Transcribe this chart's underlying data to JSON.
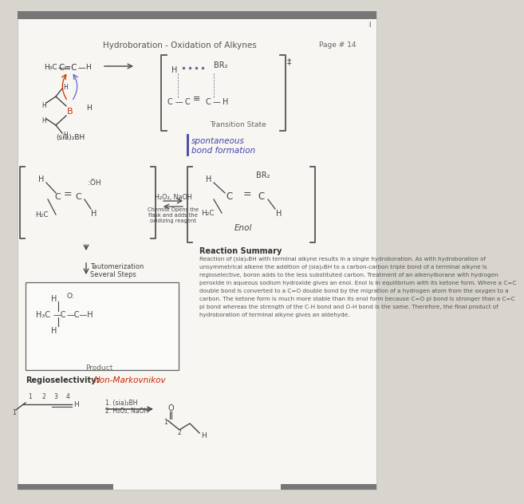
{
  "title": "Hydroboration - Oxidation of Alkynes",
  "page": "Page # 14",
  "bg_color": "#d8d4ce",
  "paper_color": "#f8f6f2",
  "reaction_summary_title": "Reaction Summary",
  "reaction_summary_text": "Reaction of (sia)₂BH with terminal alkyne results in a single hydroboration. As with hydroboration of\nunsymmetrical alkene the addition of (sia)₂BH to a carbon-carbon triple bond of a terminal alkyne is\nregioselective, boron adds to the less substituted carbon. Treatment of an alkenylborane with hydrogen\nperoxide in aqueous sodium hydroxide gives an enol. Enol is in equilibrium with its ketone form. Where a C=C\ndouble bond is converted to a C=O double bond by the migration of a hydrogen atom from the oxygen to a\ncarbon. The ketone form is much more stable than its enol form because C=O pi bond is stronger than a C=C\npi bond whereas the strength of the C-H bond and O-H bond is the same. Therefore, the final product of\nhydroboration of terminal alkyne gives an aldehyde.",
  "transition_state_label": "Transition State",
  "spontaneous_label": "spontaneous\nbond formation",
  "tautomerization_label": "Tautomerization\nSeveral Steps",
  "product_label": "Product",
  "regioselectivity_label": "Regioselectivity:",
  "non_markovnikov": "Non-Markovnikov",
  "h2o2_naoh": "H₂O₂, NaOH",
  "chemist_opens": "Chemist Opens the\nflask and adds the\noxidizing reagent",
  "sia2bh_label": "(sia)₂BH",
  "enol_label": "Enol"
}
